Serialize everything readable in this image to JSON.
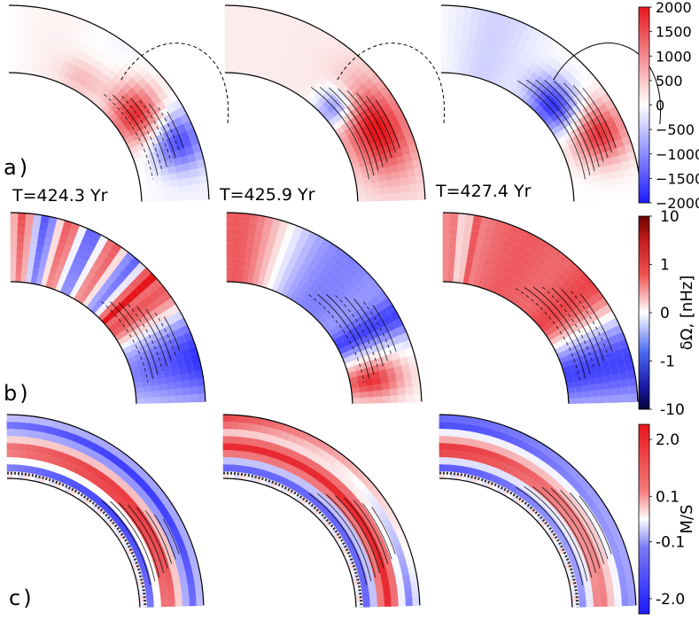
{
  "figure": {
    "row_labels": [
      "a)",
      "b)",
      "c)"
    ],
    "time_labels": [
      "T=424.3 Yr",
      "T=425.9 Yr",
      "T=427.4 Yr"
    ]
  },
  "chart_data": [
    {
      "type": "heatmap",
      "row": "a",
      "title": "",
      "panels": [
        "T=424.3 Yr",
        "T=425.9 Yr",
        "T=427.4 Yr"
      ],
      "colorbar": {
        "ticks": [
          "2000",
          "1500",
          "1000",
          "500",
          "0",
          "−500",
          "−1000",
          "−1500",
          "−2000"
        ],
        "range": [
          -2000,
          2000
        ],
        "unit": ""
      }
    },
    {
      "type": "heatmap",
      "row": "b",
      "title": "",
      "panels": [
        "T=424.3 Yr",
        "T=425.9 Yr",
        "T=427.4 Yr"
      ],
      "colorbar": {
        "ticks": [
          "10",
          "1",
          "0",
          "-1",
          "-10"
        ],
        "label": "δΩ, [nHz]",
        "scale": "symmetric-log"
      }
    },
    {
      "type": "heatmap",
      "row": "c",
      "title": "",
      "panels": [
        "T=424.3 Yr",
        "T=425.9 Yr",
        "T=427.4 Yr"
      ],
      "colorbar": {
        "ticks": [
          "2.0",
          "0.1",
          "-0.1",
          "-2.0"
        ],
        "label": "M/S",
        "scale": "symmetric-log"
      }
    }
  ]
}
